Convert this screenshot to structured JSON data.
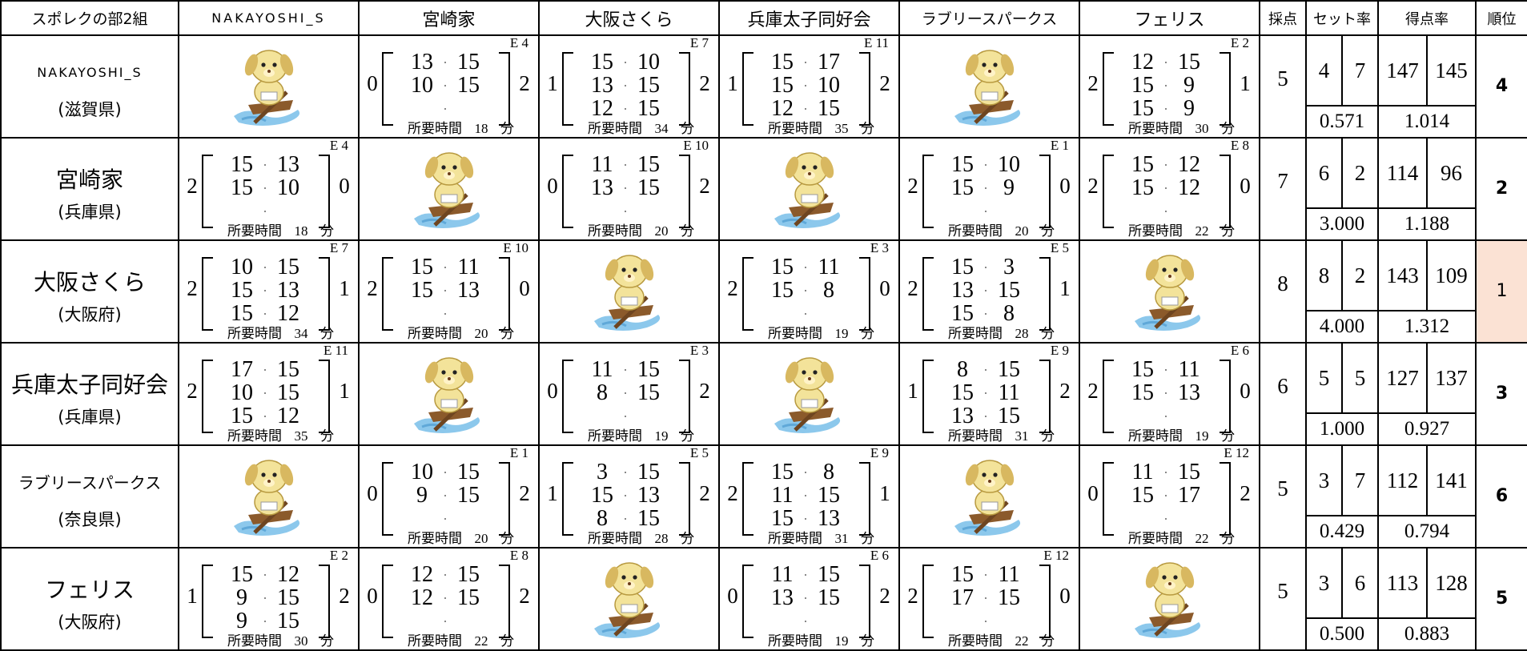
{
  "header": {
    "title": "スポレクの部2組",
    "teams": [
      "NAKAYOSHI_S",
      "宮崎家",
      "大阪さくら",
      "兵庫太子同好会",
      "ラブリースパークス",
      "フェリス"
    ],
    "points": "採点",
    "set_ratio": "セット率",
    "point_ratio": "得点率",
    "rank": "順位"
  },
  "labels": {
    "duration": "所要時間",
    "minutes_unit": "分"
  },
  "rows": [
    {
      "team": "NAKAYOSHI_S",
      "prefecture": "(滋賀県)",
      "matches": [
        null,
        {
          "court": "E 4",
          "score": [
            0,
            2
          ],
          "sets": [
            [
              13,
              15
            ],
            [
              10,
              15
            ]
          ],
          "minutes": 18
        },
        {
          "court": "E 7",
          "score": [
            1,
            2
          ],
          "sets": [
            [
              15,
              10
            ],
            [
              13,
              15
            ],
            [
              12,
              15
            ]
          ],
          "minutes": 34
        },
        {
          "court": "E 11",
          "score": [
            1,
            2
          ],
          "sets": [
            [
              15,
              17
            ],
            [
              15,
              10
            ],
            [
              12,
              15
            ]
          ],
          "minutes": 35
        },
        null,
        {
          "court": "E 2",
          "score": [
            2,
            1
          ],
          "sets": [
            [
              12,
              15
            ],
            [
              15,
              9
            ],
            [
              15,
              9
            ]
          ],
          "minutes": 30
        }
      ],
      "points": 5,
      "sets_won": 4,
      "sets_lost": 7,
      "set_ratio": "0.571",
      "points_scored": 147,
      "points_lost": 145,
      "point_ratio": "1.014",
      "rank": 4
    },
    {
      "team": "宮崎家",
      "prefecture": "(兵庫県)",
      "matches": [
        {
          "court": "E 4",
          "score": [
            2,
            0
          ],
          "sets": [
            [
              15,
              13
            ],
            [
              15,
              10
            ]
          ],
          "minutes": 18
        },
        null,
        {
          "court": "E 10",
          "score": [
            0,
            2
          ],
          "sets": [
            [
              11,
              15
            ],
            [
              13,
              15
            ]
          ],
          "minutes": 20
        },
        null,
        {
          "court": "E 1",
          "score": [
            2,
            0
          ],
          "sets": [
            [
              15,
              10
            ],
            [
              15,
              9
            ]
          ],
          "minutes": 20
        },
        {
          "court": "E 8",
          "score": [
            2,
            0
          ],
          "sets": [
            [
              15,
              12
            ],
            [
              15,
              12
            ]
          ],
          "minutes": 22
        }
      ],
      "points": 7,
      "sets_won": 6,
      "sets_lost": 2,
      "set_ratio": "3.000",
      "points_scored": 114,
      "points_lost": 96,
      "point_ratio": "1.188",
      "rank": 2
    },
    {
      "team": "大阪さくら",
      "prefecture": "(大阪府)",
      "matches": [
        {
          "court": "E 7",
          "score": [
            2,
            1
          ],
          "sets": [
            [
              10,
              15
            ],
            [
              15,
              13
            ],
            [
              15,
              12
            ]
          ],
          "minutes": 34
        },
        {
          "court": "E 10",
          "score": [
            2,
            0
          ],
          "sets": [
            [
              15,
              11
            ],
            [
              15,
              13
            ]
          ],
          "minutes": 20
        },
        null,
        {
          "court": "E 3",
          "score": [
            2,
            0
          ],
          "sets": [
            [
              15,
              11
            ],
            [
              15,
              8
            ]
          ],
          "minutes": 19
        },
        {
          "court": "E 5",
          "score": [
            2,
            1
          ],
          "sets": [
            [
              15,
              3
            ],
            [
              13,
              15
            ],
            [
              15,
              8
            ]
          ],
          "minutes": 28
        },
        null
      ],
      "points": 8,
      "sets_won": 8,
      "sets_lost": 2,
      "set_ratio": "4.000",
      "points_scored": 143,
      "points_lost": 109,
      "point_ratio": "1.312",
      "rank": 1
    },
    {
      "team": "兵庫太子同好会",
      "prefecture": "(兵庫県)",
      "matches": [
        {
          "court": "E 11",
          "score": [
            2,
            1
          ],
          "sets": [
            [
              17,
              15
            ],
            [
              10,
              15
            ],
            [
              15,
              12
            ]
          ],
          "minutes": 35
        },
        null,
        {
          "court": "E 3",
          "score": [
            0,
            2
          ],
          "sets": [
            [
              11,
              15
            ],
            [
              8,
              15
            ]
          ],
          "minutes": 19
        },
        null,
        {
          "court": "E 9",
          "score": [
            1,
            2
          ],
          "sets": [
            [
              8,
              15
            ],
            [
              15,
              11
            ],
            [
              13,
              15
            ]
          ],
          "minutes": 31
        },
        {
          "court": "E 6",
          "score": [
            2,
            0
          ],
          "sets": [
            [
              15,
              11
            ],
            [
              15,
              13
            ]
          ],
          "minutes": 19
        }
      ],
      "points": 6,
      "sets_won": 5,
      "sets_lost": 5,
      "set_ratio": "1.000",
      "points_scored": 127,
      "points_lost": 137,
      "point_ratio": "0.927",
      "rank": 3
    },
    {
      "team": "ラブリースパークス",
      "prefecture": "(奈良県)",
      "matches": [
        null,
        {
          "court": "E 1",
          "score": [
            0,
            2
          ],
          "sets": [
            [
              10,
              15
            ],
            [
              9,
              15
            ]
          ],
          "minutes": 20
        },
        {
          "court": "E 5",
          "score": [
            1,
            2
          ],
          "sets": [
            [
              3,
              15
            ],
            [
              15,
              13
            ],
            [
              8,
              15
            ]
          ],
          "minutes": 28
        },
        {
          "court": "E 9",
          "score": [
            2,
            1
          ],
          "sets": [
            [
              15,
              8
            ],
            [
              11,
              15
            ],
            [
              15,
              13
            ]
          ],
          "minutes": 31
        },
        null,
        {
          "court": "E 12",
          "score": [
            0,
            2
          ],
          "sets": [
            [
              11,
              15
            ],
            [
              15,
              17
            ]
          ],
          "minutes": 22
        }
      ],
      "points": 5,
      "sets_won": 3,
      "sets_lost": 7,
      "set_ratio": "0.429",
      "points_scored": 112,
      "points_lost": 141,
      "point_ratio": "0.794",
      "rank": 6
    },
    {
      "team": "フェリス",
      "prefecture": "(大阪府)",
      "matches": [
        {
          "court": "E 2",
          "score": [
            1,
            2
          ],
          "sets": [
            [
              15,
              12
            ],
            [
              9,
              15
            ],
            [
              9,
              15
            ]
          ],
          "minutes": 30
        },
        {
          "court": "E 8",
          "score": [
            0,
            2
          ],
          "sets": [
            [
              12,
              15
            ],
            [
              12,
              15
            ]
          ],
          "minutes": 22
        },
        null,
        {
          "court": "E 6",
          "score": [
            0,
            2
          ],
          "sets": [
            [
              11,
              15
            ],
            [
              13,
              15
            ]
          ],
          "minutes": 19
        },
        {
          "court": "E 12",
          "score": [
            2,
            0
          ],
          "sets": [
            [
              15,
              11
            ],
            [
              17,
              15
            ]
          ],
          "minutes": 22
        },
        null
      ],
      "points": 5,
      "sets_won": 3,
      "sets_lost": 6,
      "set_ratio": "0.500",
      "points_scored": 113,
      "points_lost": 128,
      "point_ratio": "0.883",
      "rank": 5
    }
  ]
}
